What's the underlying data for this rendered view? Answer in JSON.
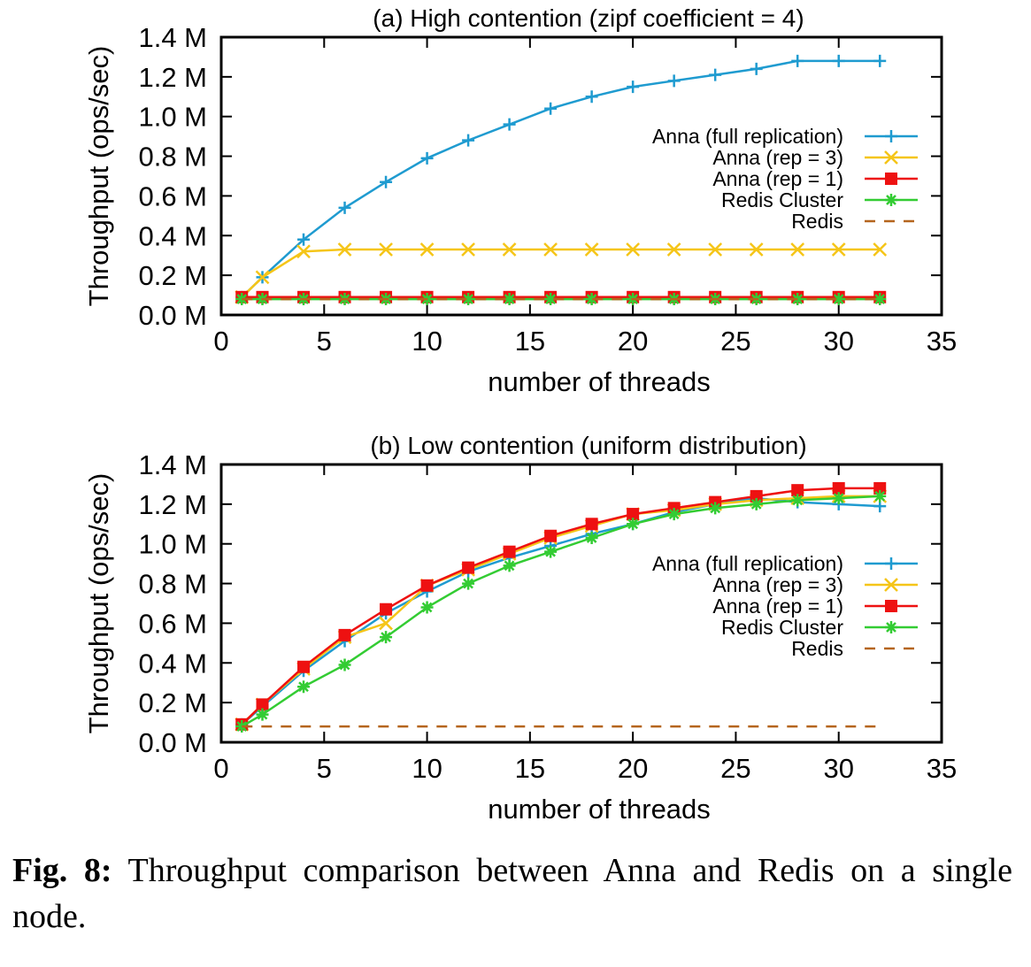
{
  "chart_data": [
    {
      "type": "line",
      "title": "(a) High contention (zipf coefficient = 4)",
      "xlabel": "number of threads",
      "ylabel": "Throughput (ops/sec)",
      "xlim": [
        0,
        35
      ],
      "ylim": [
        0,
        1.4
      ],
      "xticks": [
        0,
        5,
        10,
        15,
        20,
        25,
        30,
        35
      ],
      "yticks": [
        0,
        0.2,
        0.4,
        0.6,
        0.8,
        1.0,
        1.2,
        1.4
      ],
      "ytick_labels": [
        "0.0 M",
        "0.2 M",
        "0.4 M",
        "0.6 M",
        "0.8 M",
        "1.0 M",
        "1.2 M",
        "1.4 M"
      ],
      "legend_position": "right",
      "x": [
        1,
        2,
        4,
        6,
        8,
        10,
        12,
        14,
        16,
        18,
        20,
        22,
        24,
        26,
        28,
        30,
        32
      ],
      "series": [
        {
          "name": "Anna (full replication)",
          "color": "#1f9bd0",
          "marker": "plus",
          "dashed": false,
          "values": [
            0.09,
            0.19,
            0.38,
            0.54,
            0.67,
            0.79,
            0.88,
            0.96,
            1.04,
            1.1,
            1.15,
            1.18,
            1.21,
            1.24,
            1.28,
            1.28,
            1.28
          ]
        },
        {
          "name": "Anna (rep = 3)",
          "color": "#f5c518",
          "marker": "cross",
          "dashed": false,
          "values": [
            0.09,
            0.19,
            0.32,
            0.33,
            0.33,
            0.33,
            0.33,
            0.33,
            0.33,
            0.33,
            0.33,
            0.33,
            0.33,
            0.33,
            0.33,
            0.33,
            0.33
          ]
        },
        {
          "name": "Anna (rep = 1)",
          "color": "#ee1111",
          "marker": "square",
          "dashed": false,
          "values": [
            0.09,
            0.09,
            0.09,
            0.09,
            0.09,
            0.09,
            0.09,
            0.09,
            0.09,
            0.09,
            0.09,
            0.09,
            0.09,
            0.09,
            0.09,
            0.09,
            0.09
          ]
        },
        {
          "name": "Redis Cluster",
          "color": "#33cc33",
          "marker": "star",
          "dashed": false,
          "values": [
            0.08,
            0.08,
            0.08,
            0.08,
            0.08,
            0.08,
            0.08,
            0.08,
            0.08,
            0.08,
            0.08,
            0.08,
            0.08,
            0.08,
            0.08,
            0.08,
            0.08
          ]
        },
        {
          "name": "Redis",
          "color": "#b5651d",
          "marker": "none",
          "dashed": true,
          "values": [
            0.08,
            0.08,
            0.08,
            0.08,
            0.08,
            0.08,
            0.08,
            0.08,
            0.08,
            0.08,
            0.08,
            0.08,
            0.08,
            0.08,
            0.08,
            0.08,
            0.08
          ]
        }
      ]
    },
    {
      "type": "line",
      "title": "(b) Low contention (uniform distribution)",
      "xlabel": "number of threads",
      "ylabel": "Throughput (ops/sec)",
      "xlim": [
        0,
        35
      ],
      "ylim": [
        0,
        1.4
      ],
      "xticks": [
        0,
        5,
        10,
        15,
        20,
        25,
        30,
        35
      ],
      "yticks": [
        0,
        0.2,
        0.4,
        0.6,
        0.8,
        1.0,
        1.2,
        1.4
      ],
      "ytick_labels": [
        "0.0 M",
        "0.2 M",
        "0.4 M",
        "0.6 M",
        "0.8 M",
        "1.0 M",
        "1.2 M",
        "1.4 M"
      ],
      "legend_position": "right",
      "x": [
        1,
        2,
        4,
        6,
        8,
        10,
        12,
        14,
        16,
        18,
        20,
        22,
        24,
        26,
        28,
        30,
        32
      ],
      "series": [
        {
          "name": "Anna (full replication)",
          "color": "#1f9bd0",
          "marker": "plus",
          "dashed": false,
          "values": [
            0.09,
            0.18,
            0.36,
            0.51,
            0.65,
            0.76,
            0.86,
            0.93,
            0.99,
            1.05,
            1.1,
            1.16,
            1.2,
            1.23,
            1.21,
            1.2,
            1.19
          ]
        },
        {
          "name": "Anna (rep = 3)",
          "color": "#f5c518",
          "marker": "cross",
          "dashed": false,
          "values": [
            0.09,
            0.19,
            0.37,
            0.53,
            0.6,
            0.79,
            0.87,
            0.95,
            1.03,
            1.09,
            1.15,
            1.17,
            1.2,
            1.22,
            1.23,
            1.24,
            1.24
          ]
        },
        {
          "name": "Anna (rep = 1)",
          "color": "#ee1111",
          "marker": "square",
          "dashed": false,
          "values": [
            0.09,
            0.19,
            0.38,
            0.54,
            0.67,
            0.79,
            0.88,
            0.96,
            1.04,
            1.1,
            1.15,
            1.18,
            1.21,
            1.24,
            1.27,
            1.28,
            1.28
          ]
        },
        {
          "name": "Redis Cluster",
          "color": "#33cc33",
          "marker": "star",
          "dashed": false,
          "values": [
            0.08,
            0.14,
            0.28,
            0.39,
            0.53,
            0.68,
            0.8,
            0.89,
            0.96,
            1.03,
            1.1,
            1.15,
            1.18,
            1.2,
            1.22,
            1.23,
            1.24
          ]
        },
        {
          "name": "Redis",
          "color": "#b5651d",
          "marker": "none",
          "dashed": true,
          "values": [
            0.08,
            0.08,
            0.08,
            0.08,
            0.08,
            0.08,
            0.08,
            0.08,
            0.08,
            0.08,
            0.08,
            0.08,
            0.08,
            0.08,
            0.08,
            0.08,
            0.08
          ]
        }
      ]
    }
  ],
  "caption": {
    "label": "Fig. 8:",
    "text": " Throughput comparison between Anna and Redis on a single node."
  }
}
